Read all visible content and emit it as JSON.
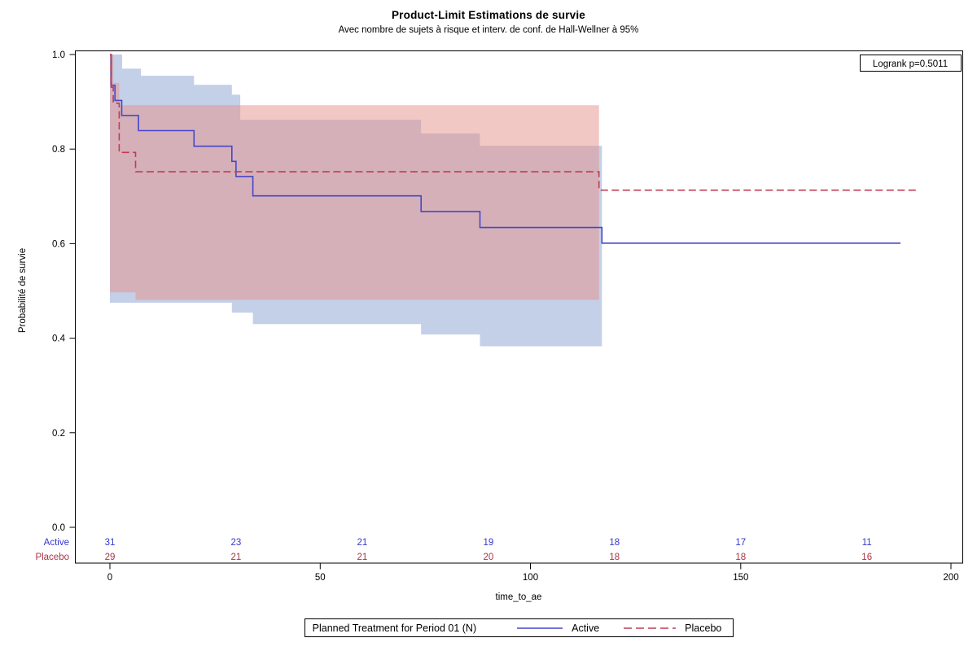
{
  "chart_data": {
    "type": "line",
    "subtype": "kaplan-meier-step-with-ci-bands",
    "title": "Product-Limit Estimations de survie",
    "subtitle": "Avec nombre de sujets à risque et interv. de conf. de Hall-Wellner à 95%",
    "xlabel": "time_to_ae",
    "ylabel": "Probabilité de survie",
    "xlim": [
      0,
      200
    ],
    "ylim": [
      0.0,
      1.0
    ],
    "xticks": [
      0,
      50,
      100,
      150,
      200
    ],
    "yticks": [
      0.0,
      0.2,
      0.4,
      0.6,
      0.8,
      1.0
    ],
    "ytick_labels": [
      "0.0",
      "0.2",
      "0.4",
      "0.6",
      "0.8",
      "1.0"
    ],
    "grid": "off",
    "legend_position": "bottom-outside",
    "annotation": {
      "logrank_label": "Logrank p=0.5011"
    },
    "series": [
      {
        "name": "Active",
        "line_color": "#4646c8",
        "line_style": "solid",
        "steps": [
          [
            0,
            1.0
          ],
          [
            0.3,
            1.0
          ],
          [
            0.3,
            0.935
          ],
          [
            1.2,
            0.935
          ],
          [
            1.2,
            0.903
          ],
          [
            2.8,
            0.903
          ],
          [
            2.8,
            0.871
          ],
          [
            6.8,
            0.871
          ],
          [
            6.8,
            0.839
          ],
          [
            20,
            0.839
          ],
          [
            20,
            0.806
          ],
          [
            29,
            0.806
          ],
          [
            29,
            0.774
          ],
          [
            30,
            0.774
          ],
          [
            30,
            0.742
          ],
          [
            34,
            0.742
          ],
          [
            34,
            0.701
          ],
          [
            74,
            0.701
          ],
          [
            74,
            0.668
          ],
          [
            88,
            0.668
          ],
          [
            88,
            0.634
          ],
          [
            117,
            0.634
          ],
          [
            117,
            0.601
          ],
          [
            188,
            0.601
          ]
        ],
        "ci_band": {
          "fill": "#899fd1",
          "opacity": 0.5,
          "upper": [
            [
              0,
              1.0
            ],
            [
              2.9,
              1.0
            ],
            [
              2.9,
              0.97
            ],
            [
              7.4,
              0.97
            ],
            [
              7.4,
              0.955
            ],
            [
              20,
              0.955
            ],
            [
              20,
              0.936
            ],
            [
              29,
              0.936
            ],
            [
              29,
              0.915
            ],
            [
              31,
              0.915
            ],
            [
              31,
              0.862
            ],
            [
              74,
              0.862
            ],
            [
              74,
              0.833
            ],
            [
              88,
              0.833
            ],
            [
              88,
              0.807
            ],
            [
              117,
              0.807
            ]
          ],
          "lower": [
            [
              0,
              0.475
            ],
            [
              29,
              0.475
            ],
            [
              29,
              0.454
            ],
            [
              34,
              0.454
            ],
            [
              34,
              0.43
            ],
            [
              74,
              0.43
            ],
            [
              74,
              0.408
            ],
            [
              88,
              0.408
            ],
            [
              88,
              0.383
            ],
            [
              117,
              0.383
            ]
          ]
        }
      },
      {
        "name": "Placebo",
        "line_color": "#c23b52",
        "line_style": "dashed",
        "steps": [
          [
            0,
            1.0
          ],
          [
            0.3,
            1.0
          ],
          [
            0.3,
            0.931
          ],
          [
            0.8,
            0.931
          ],
          [
            0.8,
            0.897
          ],
          [
            2.2,
            0.897
          ],
          [
            2.2,
            0.793
          ],
          [
            6.1,
            0.793
          ],
          [
            6.1,
            0.752
          ],
          [
            116.3,
            0.752
          ],
          [
            116.3,
            0.713
          ],
          [
            192,
            0.713
          ]
        ],
        "ci_band": {
          "fill": "#e59189",
          "opacity": 0.5,
          "upper": [
            [
              0,
              1.0
            ],
            [
              0.8,
              1.0
            ],
            [
              0.8,
              0.94
            ],
            [
              2.2,
              0.94
            ],
            [
              2.2,
              0.893
            ],
            [
              116.3,
              0.893
            ]
          ],
          "lower": [
            [
              0,
              0.497
            ],
            [
              6.1,
              0.497
            ],
            [
              6.1,
              0.481
            ],
            [
              116.3,
              0.481
            ]
          ]
        }
      }
    ],
    "at_risk_table": {
      "times": [
        0,
        30,
        60,
        90,
        120,
        150,
        180
      ],
      "rows": [
        {
          "label": "Active",
          "color": "#3535cd",
          "counts": [
            31,
            23,
            21,
            19,
            18,
            17,
            11
          ]
        },
        {
          "label": "Placebo",
          "color": "#ab3449",
          "counts": [
            29,
            21,
            21,
            20,
            18,
            18,
            16
          ]
        }
      ]
    },
    "legend": {
      "title": "Planned Treatment for Period 01 (N)",
      "entries": [
        {
          "label": "Active"
        },
        {
          "label": "Placebo"
        }
      ]
    }
  }
}
